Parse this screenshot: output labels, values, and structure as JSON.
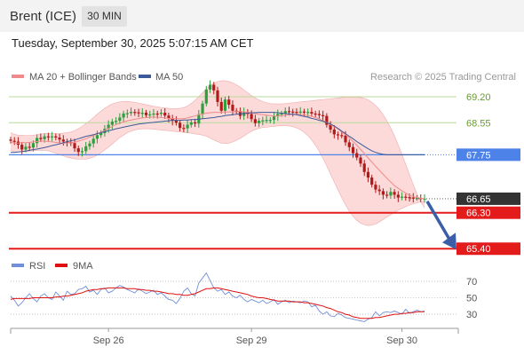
{
  "header": {
    "title": "Brent (ICE)",
    "timeframe": "30 MIN",
    "timestamp": "Tuesday, September 30, 2025 5:07:15 AM CET"
  },
  "colors": {
    "ma20": "#f08a8a",
    "ma50": "#3d5a98",
    "bands": "#fbd3d3",
    "up": "#2e9e3e",
    "down": "#b21a1a",
    "target": "#3a5fa8",
    "last": "#333333",
    "rsi": "#6f8fd8",
    "rsi_ma": "#e01010",
    "res_line": "#b9d99a",
    "support": "#e41b1b",
    "pivot": "#4d82e8"
  },
  "chart_data": [
    {
      "type": "candlestick",
      "legend": [
        "MA 20 + Bollinger Bands",
        "MA 50"
      ],
      "credit": "Research © 2025 Trading Central",
      "x_labels": [
        {
          "label": "Sep 26",
          "index": 26
        },
        {
          "label": "Sep 29",
          "index": 64
        },
        {
          "label": "Sep 30",
          "index": 104
        }
      ],
      "ylim": [
        65.25,
        69.6
      ],
      "levels": [
        {
          "value": 69.2,
          "label": "69.20",
          "kind": "resistance"
        },
        {
          "value": 68.55,
          "label": "68.55",
          "kind": "resistance"
        },
        {
          "value": 67.75,
          "label": "67.75",
          "kind": "pivot"
        },
        {
          "value": 66.65,
          "label": "66.65",
          "kind": "last"
        },
        {
          "value": 66.3,
          "label": "66.30",
          "kind": "support"
        },
        {
          "value": 65.4,
          "label": "65.40",
          "kind": "support"
        }
      ],
      "close": [
        68.1,
        68.08,
        68.0,
        67.88,
        67.95,
        67.93,
        68.04,
        68.17,
        68.14,
        68.21,
        68.2,
        68.21,
        68.18,
        68.13,
        68.08,
        68.07,
        68.04,
        67.91,
        67.82,
        67.84,
        67.96,
        68.03,
        68.15,
        68.24,
        68.29,
        68.4,
        68.5,
        68.58,
        68.6,
        68.68,
        68.78,
        68.79,
        68.82,
        68.81,
        68.79,
        68.8,
        68.74,
        68.76,
        68.78,
        68.77,
        68.8,
        68.73,
        68.66,
        68.6,
        68.55,
        68.42,
        68.41,
        68.5,
        68.56,
        68.53,
        68.76,
        69.03,
        69.38,
        69.5,
        69.36,
        69.07,
        68.85,
        69.13,
        69.0,
        68.85,
        68.84,
        68.72,
        68.82,
        68.77,
        68.64,
        68.54,
        68.6,
        68.61,
        68.62,
        68.62,
        68.71,
        68.77,
        68.78,
        68.84,
        68.83,
        68.82,
        68.81,
        68.83,
        68.81,
        68.82,
        68.78,
        68.77,
        68.74,
        68.72,
        68.5,
        68.38,
        68.26,
        68.24,
        68.23,
        68.06,
        67.94,
        67.79,
        67.68,
        67.53,
        67.32,
        67.18,
        67.0,
        66.88,
        66.84,
        66.75,
        66.73,
        66.82,
        66.75,
        66.68,
        66.7,
        66.69,
        66.68,
        66.67,
        66.67,
        66.65,
        66.65
      ],
      "ma20": [
        68.08,
        68.04,
        68.04,
        68.05,
        68.05,
        68.06,
        68.07,
        68.08,
        68.09,
        68.09,
        68.08,
        68.07,
        68.06,
        68.04,
        68.04,
        68.04,
        68.05,
        68.06,
        68.09,
        68.12,
        68.15,
        68.19,
        68.23,
        68.27,
        68.31,
        68.36,
        68.41,
        68.46,
        68.5,
        68.54,
        68.57,
        68.6,
        68.62,
        68.64,
        68.65,
        68.67,
        68.68,
        68.69,
        68.69,
        68.69,
        68.68,
        68.67,
        68.66,
        68.65,
        68.65,
        68.65,
        68.65,
        68.67,
        68.7,
        68.72,
        68.75,
        68.77,
        68.79,
        68.8,
        68.81,
        68.81,
        68.81,
        68.82,
        68.82,
        68.82,
        68.83,
        68.83,
        68.82,
        68.81,
        68.8,
        68.78,
        68.76,
        68.75,
        68.74,
        68.73,
        68.72,
        68.72,
        68.73,
        68.74,
        68.75,
        68.76,
        68.76,
        68.76,
        68.75,
        68.73,
        68.71,
        68.68,
        68.65,
        68.6,
        68.56,
        68.5,
        68.45,
        68.39,
        68.32,
        68.25,
        68.17,
        68.08,
        67.99,
        67.88,
        67.78,
        67.67,
        67.57,
        67.46,
        67.36,
        67.26,
        67.16,
        67.07,
        66.98,
        66.91,
        66.85,
        66.79,
        66.74,
        66.7,
        66.68,
        66.66,
        66.65
      ],
      "bb_upper": [
        68.3,
        68.26,
        68.24,
        68.24,
        68.23,
        68.23,
        68.24,
        68.25,
        68.27,
        68.28,
        68.28,
        68.28,
        68.28,
        68.28,
        68.29,
        68.3,
        68.32,
        68.35,
        68.4,
        68.46,
        68.53,
        68.6,
        68.68,
        68.76,
        68.84,
        68.91,
        68.97,
        69.02,
        69.05,
        69.07,
        69.08,
        69.08,
        69.07,
        69.06,
        69.04,
        69.02,
        69.0,
        68.98,
        68.96,
        68.95,
        68.93,
        68.92,
        68.91,
        68.9,
        68.9,
        68.91,
        68.93,
        68.97,
        69.03,
        69.11,
        69.2,
        69.3,
        69.4,
        69.48,
        69.54,
        69.58,
        69.6,
        69.6,
        69.58,
        69.55,
        69.5,
        69.44,
        69.37,
        69.3,
        69.23,
        69.17,
        69.12,
        69.08,
        69.05,
        69.03,
        69.02,
        69.02,
        69.02,
        69.03,
        69.04,
        69.05,
        69.06,
        69.07,
        69.08,
        69.09,
        69.1,
        69.11,
        69.12,
        69.13,
        69.14,
        69.15,
        69.16,
        69.17,
        69.18,
        69.19,
        69.19,
        69.19,
        69.19,
        69.18,
        69.16,
        69.12,
        69.06,
        68.98,
        68.88,
        68.75,
        68.6,
        68.42,
        68.22,
        68.0,
        67.76,
        67.51,
        67.25,
        67.0,
        66.77,
        66.57,
        66.42
      ],
      "bb_lower": [
        67.86,
        67.82,
        67.82,
        67.82,
        67.83,
        67.84,
        67.85,
        67.86,
        67.86,
        67.86,
        67.85,
        67.82,
        67.79,
        67.75,
        67.72,
        67.69,
        67.67,
        67.65,
        67.64,
        67.64,
        67.64,
        67.66,
        67.69,
        67.74,
        67.8,
        67.87,
        67.94,
        68.02,
        68.1,
        68.18,
        68.24,
        68.3,
        68.34,
        68.37,
        68.39,
        68.4,
        68.4,
        68.4,
        68.39,
        68.38,
        68.37,
        68.36,
        68.35,
        68.34,
        68.33,
        68.32,
        68.31,
        68.3,
        68.29,
        68.27,
        68.26,
        68.24,
        68.21,
        68.17,
        68.12,
        68.08,
        68.04,
        68.03,
        68.04,
        68.07,
        68.11,
        68.16,
        68.22,
        68.28,
        68.34,
        68.38,
        68.41,
        68.43,
        68.44,
        68.45,
        68.46,
        68.47,
        68.48,
        68.48,
        68.47,
        68.45,
        68.42,
        68.38,
        68.31,
        68.23,
        68.12,
        67.99,
        67.84,
        67.66,
        67.47,
        67.27,
        67.07,
        66.87,
        66.68,
        66.5,
        66.34,
        66.21,
        66.11,
        66.04,
        66.0,
        65.98,
        65.99,
        66.02,
        66.07,
        66.13,
        66.19,
        66.25,
        66.31,
        66.36,
        66.41,
        66.45,
        66.49,
        66.52,
        66.55,
        66.57,
        66.59
      ],
      "ma50": [
        67.81,
        67.81,
        67.82,
        67.83,
        67.84,
        67.86,
        67.88,
        67.89,
        67.91,
        67.93,
        67.95,
        67.98,
        68.0,
        68.02,
        68.05,
        68.08,
        68.1,
        68.12,
        68.15,
        68.18,
        68.21,
        68.23,
        68.25,
        68.28,
        68.3,
        68.33,
        68.35,
        68.37,
        68.4,
        68.42,
        68.44,
        68.46,
        68.48,
        68.5,
        68.52,
        68.53,
        68.54,
        68.55,
        68.56,
        68.57,
        68.58,
        68.59,
        68.6,
        68.61,
        68.61,
        68.61,
        68.62,
        68.62,
        68.63,
        68.63,
        68.64,
        68.65,
        68.66,
        68.67,
        68.68,
        68.7,
        68.71,
        68.73,
        68.74,
        68.75,
        68.76,
        68.77,
        68.78,
        68.79,
        68.8,
        68.8,
        68.81,
        68.81,
        68.81,
        68.81,
        68.81,
        68.8,
        68.79,
        68.78,
        68.77,
        68.76,
        68.75,
        68.73,
        68.71,
        68.69,
        68.66,
        68.64,
        68.61,
        68.59,
        68.55,
        68.52,
        68.47,
        68.41,
        68.34,
        68.28,
        68.21,
        68.15,
        68.08,
        68.02,
        67.96,
        67.9,
        67.85,
        67.81,
        67.78,
        67.76,
        67.75,
        67.75,
        67.75,
        67.75,
        67.75,
        67.75,
        67.75,
        67.75,
        67.75,
        67.75,
        67.75
      ],
      "target_arrow": {
        "from": 66.65,
        "to": 65.4
      }
    },
    {
      "type": "line",
      "legend": [
        "RSI",
        "9MA"
      ],
      "ylim": [
        15,
        85
      ],
      "levels": [
        {
          "value": 70,
          "label": "70"
        },
        {
          "value": 50,
          "label": "50"
        },
        {
          "value": 30,
          "label": "30"
        }
      ],
      "rsi": [
        52,
        47,
        40,
        44,
        50,
        55,
        49,
        45,
        52,
        55,
        50,
        48,
        57,
        52,
        47,
        58,
        54,
        55,
        60,
        61,
        64,
        57,
        59,
        54,
        60,
        62,
        56,
        58,
        62,
        65,
        63,
        60,
        58,
        56,
        61,
        58,
        55,
        57,
        59,
        54,
        56,
        52,
        48,
        47,
        43,
        49,
        58,
        62,
        55,
        52,
        68,
        74,
        80,
        71,
        62,
        58,
        60,
        54,
        57,
        52,
        50,
        53,
        48,
        45,
        48,
        46,
        44,
        47,
        43,
        45,
        48,
        42,
        45,
        47,
        44,
        46,
        45,
        44,
        46,
        45,
        39,
        41,
        34,
        30,
        33,
        28,
        27,
        31,
        29,
        26,
        25,
        24,
        23,
        22,
        21,
        24,
        26,
        33,
        28,
        32,
        33,
        32,
        34,
        32,
        30,
        36,
        31,
        33,
        35,
        33,
        34
      ],
      "ma9": [
        48,
        49,
        49,
        49,
        49,
        49,
        50,
        50,
        50,
        50,
        50,
        50,
        51,
        51,
        52,
        52,
        53,
        54,
        55,
        56,
        58,
        59,
        60,
        60,
        61,
        61,
        62,
        62,
        62,
        62,
        62,
        61,
        61,
        61,
        60,
        60,
        59,
        59,
        58,
        58,
        57,
        56,
        55,
        55,
        54,
        54,
        53,
        53,
        54,
        55,
        57,
        59,
        61,
        61,
        62,
        62,
        61,
        60,
        59,
        58,
        57,
        56,
        55,
        54,
        52,
        51,
        50,
        50,
        49,
        48,
        47,
        46,
        46,
        46,
        46,
        45,
        45,
        45,
        44,
        44,
        43,
        42,
        41,
        40,
        38,
        37,
        35,
        33,
        32,
        30,
        29,
        27,
        26,
        25,
        25,
        25,
        25,
        26,
        26,
        27,
        28,
        29,
        30,
        30,
        31,
        31,
        32,
        32,
        33,
        33,
        33
      ]
    }
  ]
}
